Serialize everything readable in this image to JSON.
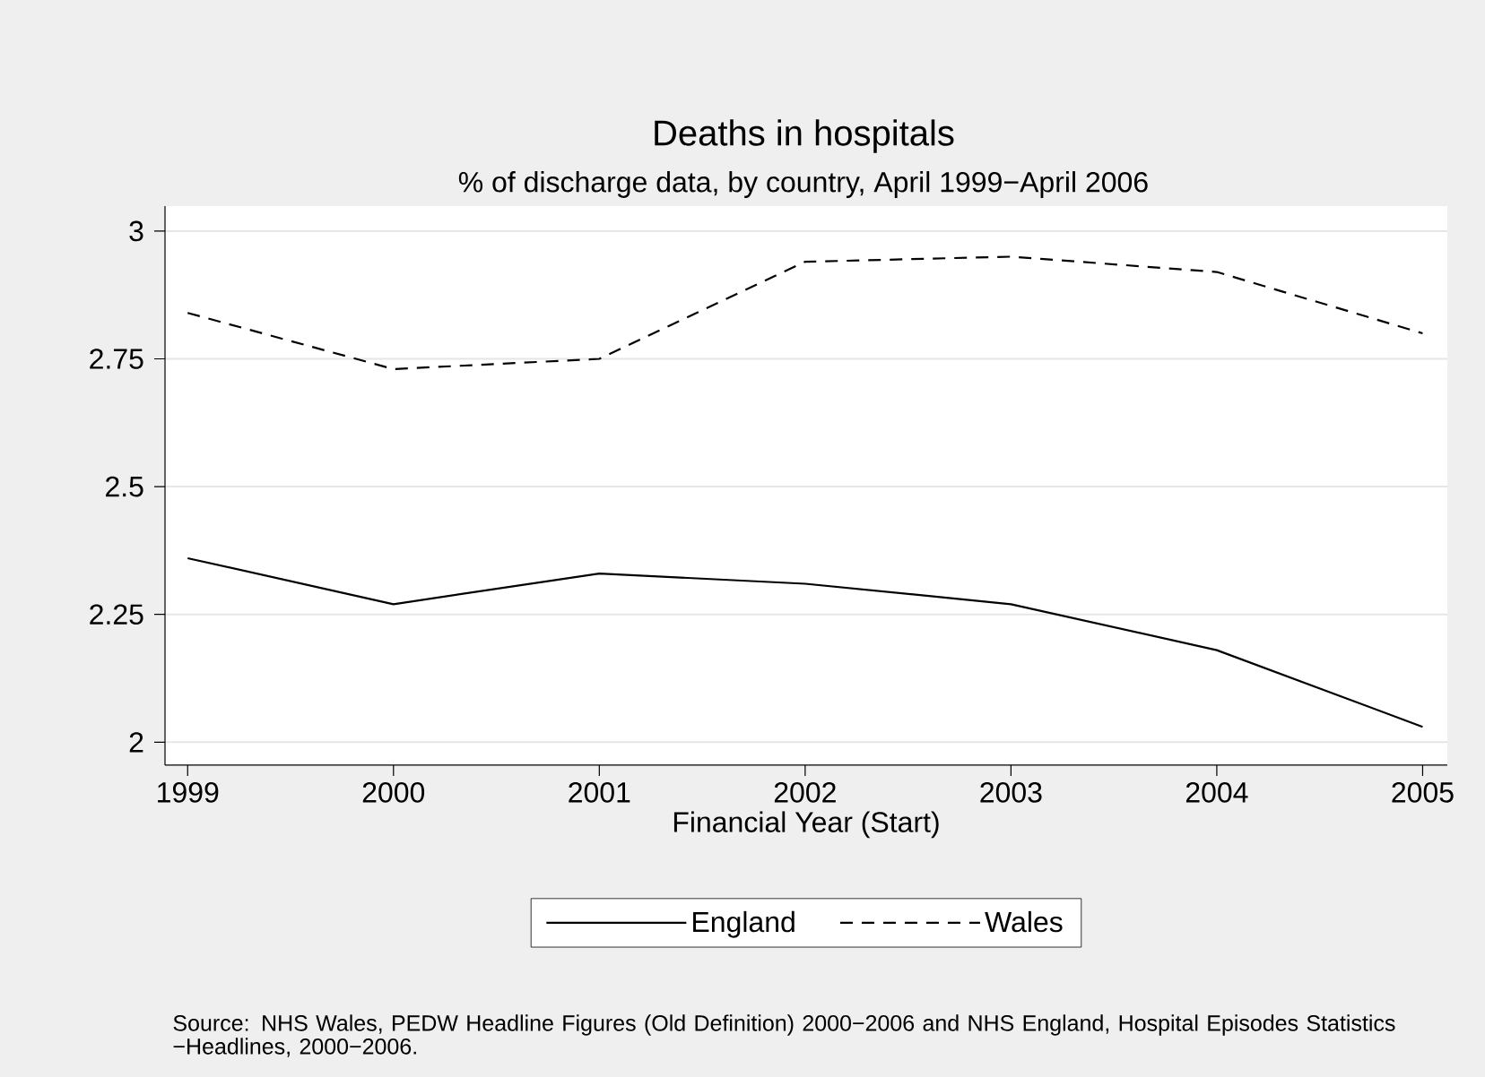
{
  "chart_data": {
    "type": "line",
    "title": "Deaths in hospitals",
    "subtitle": "% of discharge data, by country, April 1999−April 2006",
    "xlabel": "Financial Year (Start)",
    "x": [
      1999,
      2000,
      2001,
      2002,
      2003,
      2004,
      2005
    ],
    "series": [
      {
        "name": "England",
        "color": "#000000",
        "line_style": "solid",
        "values": [
          2.36,
          2.27,
          2.33,
          2.31,
          2.27,
          2.18,
          2.03
        ]
      },
      {
        "name": "Wales",
        "color": "#000000",
        "line_style": "dashed",
        "values": [
          2.84,
          2.73,
          2.75,
          2.94,
          2.95,
          2.92,
          2.8
        ]
      }
    ],
    "xlim": [
      1998.89,
      2005.12
    ],
    "ylim": [
      1.955,
      3.049
    ],
    "xticks": [
      1999,
      2000,
      2001,
      2002,
      2003,
      2004,
      2005
    ],
    "yticks": [
      2,
      2.25,
      2.5,
      2.75,
      3
    ],
    "grid": "y",
    "legend": "bottom",
    "marker": "none",
    "annotations": [
      "Source: NHS Wales, PEDW Headline Figures (Old Definition) 2000−2006 and NHS England, Hospital Episodes Statistics −Headlines, 2000−2006."
    ]
  }
}
